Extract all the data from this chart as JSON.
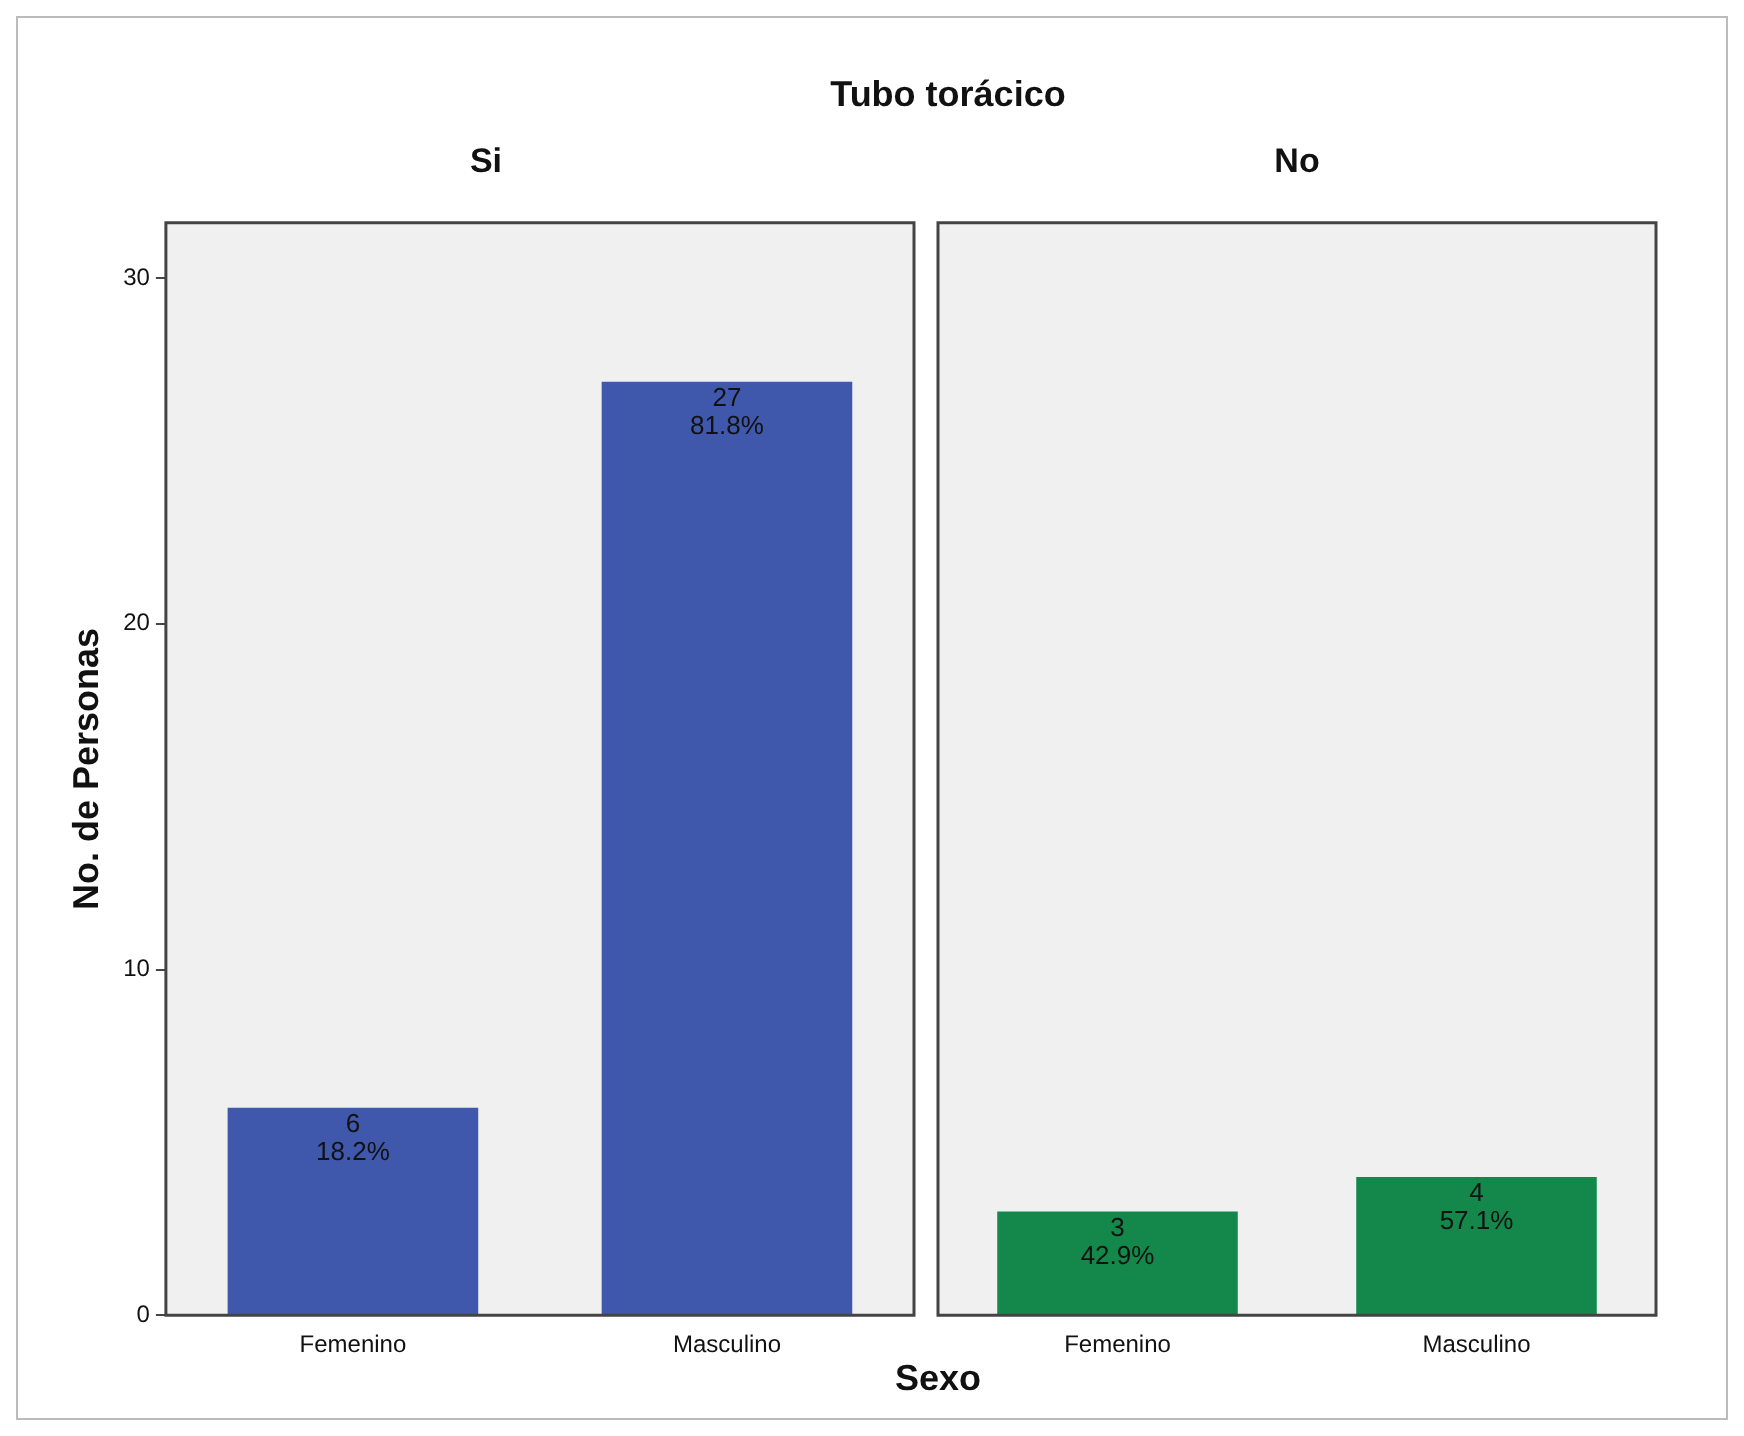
{
  "chart_data": [
    {
      "type": "bar",
      "title": "Tubo torácico",
      "subtitle": "Si",
      "xlabel": "Sexo",
      "ylabel": "No. de Personas",
      "categories": [
        "Femenino",
        "Masculino"
      ],
      "values": [
        6,
        27
      ],
      "color": "#3f58ab",
      "value_labels": [
        "6\n18.2%",
        "27\n81.8%"
      ],
      "ylim": [
        0,
        31.6
      ],
      "yticks": [
        0,
        10,
        20,
        30
      ],
      "grid": false,
      "legend": false
    },
    {
      "type": "bar",
      "subtitle": "No",
      "categories": [
        "Femenino",
        "Masculino"
      ],
      "values": [
        3,
        4
      ],
      "color": "#13884a",
      "value_labels": [
        "3\n42.9%",
        "4\n57.1%"
      ],
      "ylim": [
        0,
        31.6
      ],
      "yticks": [
        0,
        10,
        20,
        30
      ],
      "grid": false,
      "legend": false,
      "tick_labels": "x"
    }
  ]
}
